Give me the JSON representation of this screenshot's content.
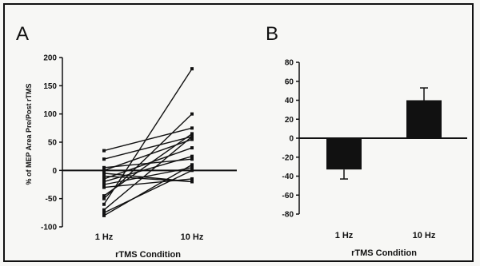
{
  "chart_data": [
    {
      "panel": "A",
      "type": "line",
      "title": "",
      "xlabel": "rTMS Condition",
      "ylabel": "% of MEP Area Pre/Post rTMS",
      "categories": [
        "1 Hz",
        "10 Hz"
      ],
      "ylim": [
        -100,
        200
      ],
      "yticks": [
        -100,
        -50,
        0,
        50,
        100,
        150,
        200
      ],
      "zero_line": true,
      "series": [
        {
          "values": [
            35,
            75
          ]
        },
        {
          "values": [
            20,
            60
          ]
        },
        {
          "values": [
            5,
            20
          ]
        },
        {
          "values": [
            0,
            55
          ]
        },
        {
          "values": [
            -5,
            -20
          ]
        },
        {
          "values": [
            -10,
            -20
          ]
        },
        {
          "values": [
            -15,
            40
          ]
        },
        {
          "values": [
            -20,
            25
          ]
        },
        {
          "values": [
            -25,
            5
          ]
        },
        {
          "values": [
            -30,
            -15
          ]
        },
        {
          "values": [
            -45,
            65
          ]
        },
        {
          "values": [
            -50,
            100
          ]
        },
        {
          "values": [
            -60,
            180
          ]
        },
        {
          "values": [
            -70,
            60
          ]
        },
        {
          "values": [
            -75,
            0
          ]
        },
        {
          "values": [
            -80,
            10
          ]
        }
      ]
    },
    {
      "panel": "B",
      "type": "bar",
      "title": "",
      "xlabel": "rTMS Condition",
      "ylabel": "",
      "categories": [
        "1 Hz",
        "10 Hz"
      ],
      "values": [
        -33,
        40
      ],
      "error": [
        10,
        13
      ],
      "ylim": [
        -80,
        80
      ],
      "yticks": [
        -80,
        -60,
        -40,
        -20,
        0,
        20,
        40,
        60,
        80
      ],
      "colors": {
        "bar": "#111111"
      }
    }
  ]
}
